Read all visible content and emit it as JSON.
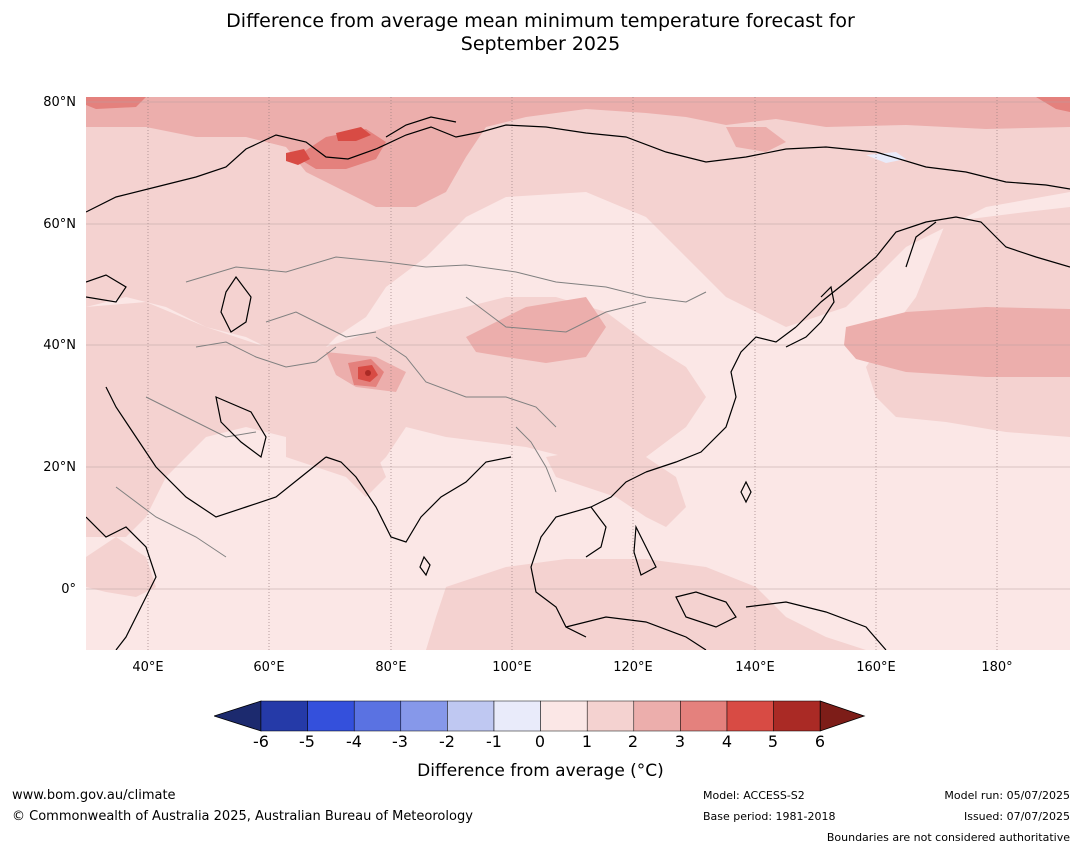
{
  "title_line1": "Difference from average mean minimum temperature forecast for",
  "title_line2": "September 2025",
  "lat_labels": [
    "80°N",
    "60°N",
    "40°N",
    "20°N",
    "0°"
  ],
  "lon_labels": [
    "40°E",
    "60°E",
    "80°E",
    "100°E",
    "120°E",
    "140°E",
    "160°E",
    "180°"
  ],
  "colorbar": {
    "ticks": [
      "-6",
      "-5",
      "-4",
      "-3",
      "-2",
      "-1",
      "0",
      "1",
      "2",
      "3",
      "4",
      "5",
      "6"
    ],
    "colors": [
      "#1c2a6e",
      "#253aa8",
      "#3450dc",
      "#5a72e2",
      "#8698ea",
      "#bfc8f2",
      "#e9ebfa",
      "#fbe7e6",
      "#f4d2d0",
      "#ecaeac",
      "#e4817d",
      "#d84b44",
      "#aa2a25",
      "#7d1d18"
    ],
    "label": "Difference from average (°C)"
  },
  "footer": {
    "website": "www.bom.gov.au/climate",
    "copyright": "© Commonwealth of Australia 2025, Australian Bureau of Meteorology",
    "model": "Model: ACCESS-S2",
    "base_period": "Base period: 1981-2018",
    "model_run": "Model run: 05/07/2025",
    "issued": "Issued: 07/07/2025",
    "disclaimer": "Boundaries are not considered authoritative"
  }
}
